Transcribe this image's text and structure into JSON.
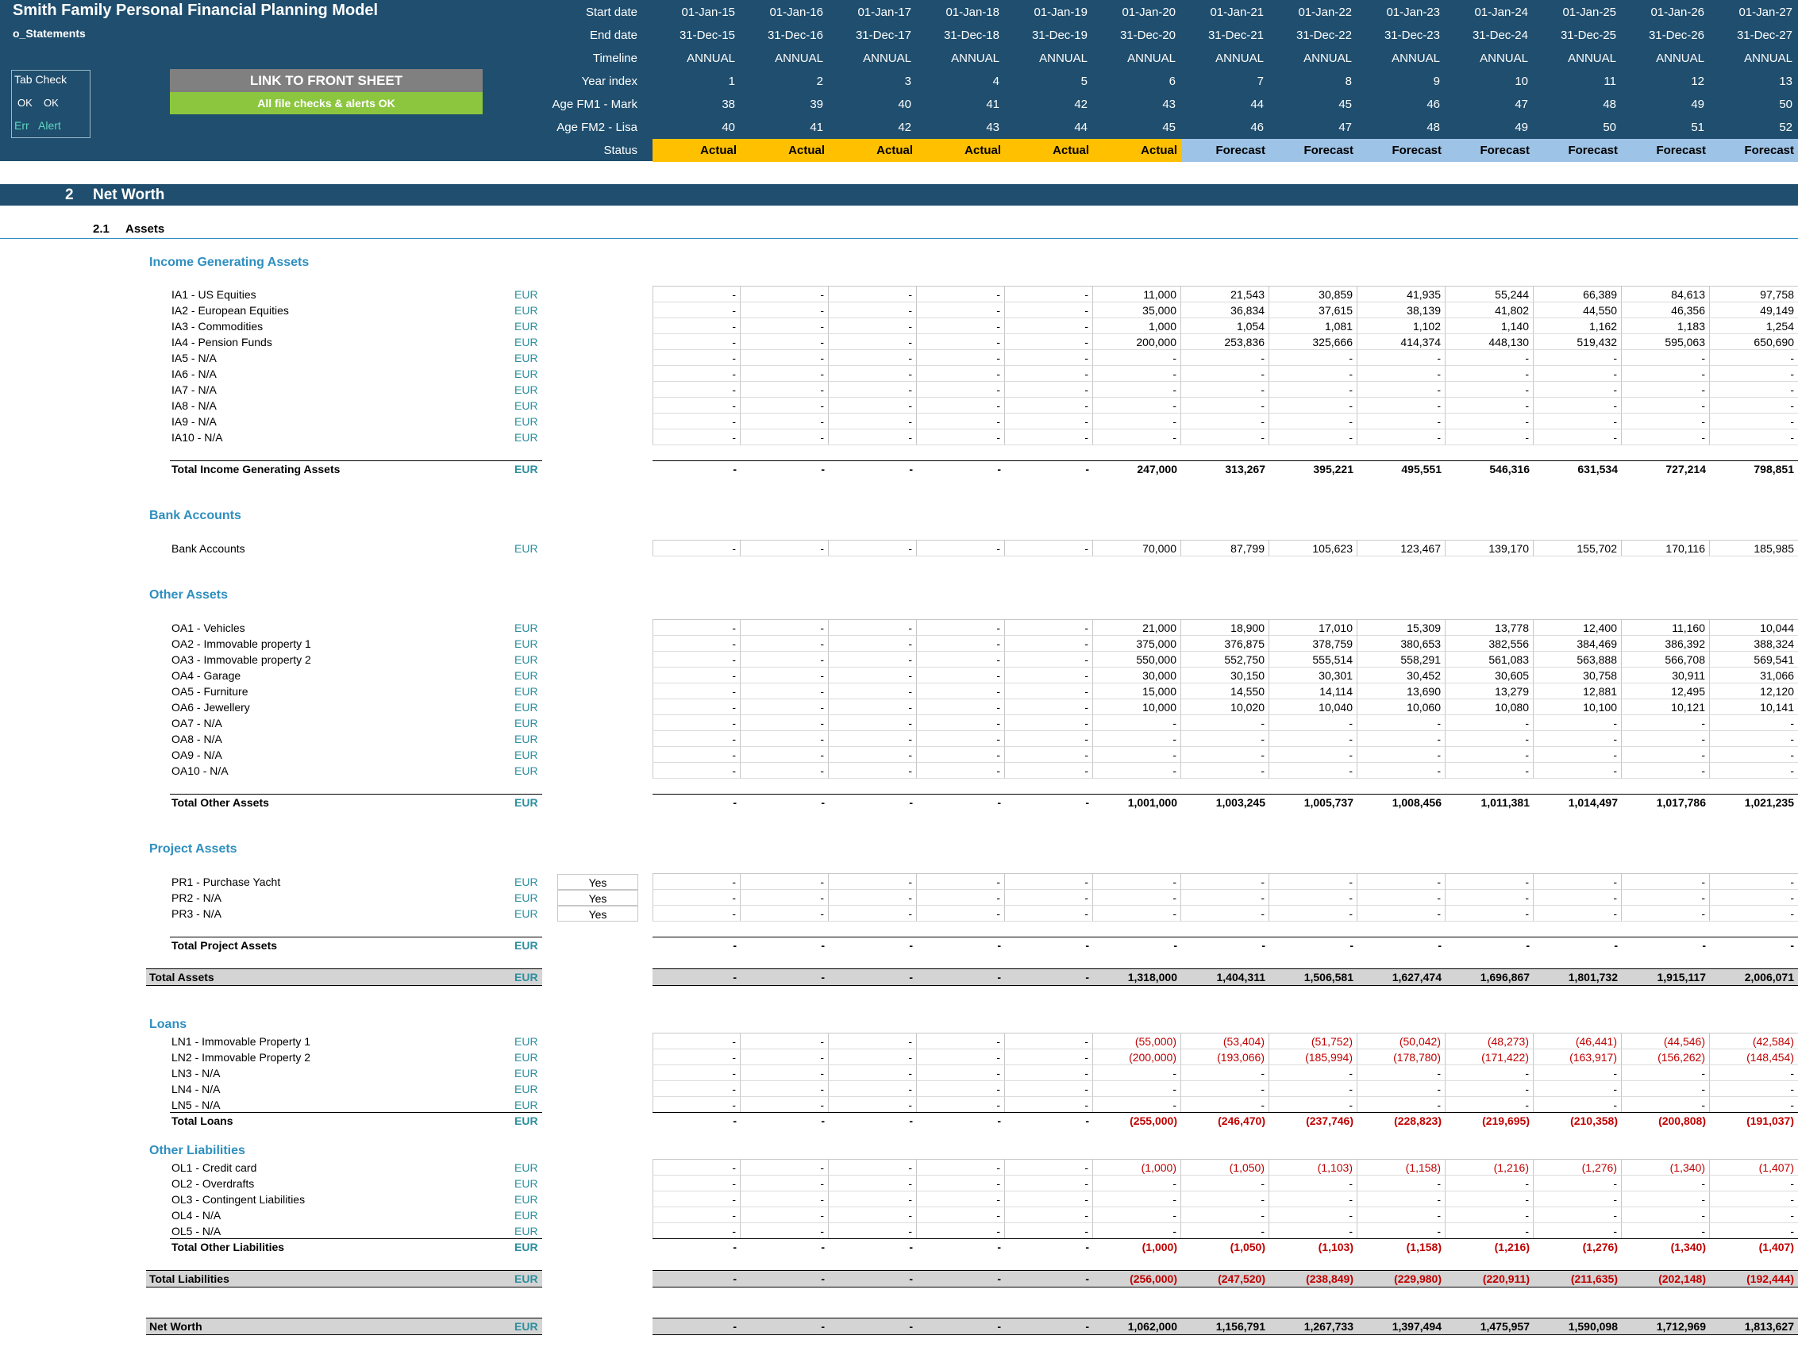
{
  "header": {
    "title": "Smith Family Personal Financial Planning Model",
    "sheet": "o_Statements",
    "tab_check": {
      "title": "Tab Check",
      "ok1": "OK",
      "ok2": "OK",
      "err": "Err",
      "alert": "Alert"
    },
    "link_button": "LINK TO FRONT SHEET",
    "checks_banner": "All file checks & alerts OK",
    "row_labels": [
      "Start date",
      "End date",
      "Timeline",
      "Year index",
      "Age FM1 - Mark",
      "Age FM2 - Lisa",
      "Status"
    ],
    "start_dates": [
      "01-Jan-15",
      "01-Jan-16",
      "01-Jan-17",
      "01-Jan-18",
      "01-Jan-19",
      "01-Jan-20",
      "01-Jan-21",
      "01-Jan-22",
      "01-Jan-23",
      "01-Jan-24",
      "01-Jan-25",
      "01-Jan-26",
      "01-Jan-27"
    ],
    "end_dates": [
      "31-Dec-15",
      "31-Dec-16",
      "31-Dec-17",
      "31-Dec-18",
      "31-Dec-19",
      "31-Dec-20",
      "31-Dec-21",
      "31-Dec-22",
      "31-Dec-23",
      "31-Dec-24",
      "31-Dec-25",
      "31-Dec-26",
      "31-Dec-27"
    ],
    "timeline": [
      "ANNUAL",
      "ANNUAL",
      "ANNUAL",
      "ANNUAL",
      "ANNUAL",
      "ANNUAL",
      "ANNUAL",
      "ANNUAL",
      "ANNUAL",
      "ANNUAL",
      "ANNUAL",
      "ANNUAL",
      "ANNUAL"
    ],
    "year_index": [
      "1",
      "2",
      "3",
      "4",
      "5",
      "6",
      "7",
      "8",
      "9",
      "10",
      "11",
      "12",
      "13"
    ],
    "age_fm1": [
      "38",
      "39",
      "40",
      "41",
      "42",
      "43",
      "44",
      "45",
      "46",
      "47",
      "48",
      "49",
      "50"
    ],
    "age_fm2": [
      "40",
      "41",
      "42",
      "43",
      "44",
      "45",
      "46",
      "47",
      "48",
      "49",
      "50",
      "51",
      "52"
    ],
    "status": [
      "Actual",
      "Actual",
      "Actual",
      "Actual",
      "Actual",
      "Actual",
      "Forecast",
      "Forecast",
      "Forecast",
      "Forecast",
      "Forecast",
      "Forecast",
      "Forecast"
    ]
  },
  "colors": {
    "navy": "#1f4e6e",
    "actual": "#ffc000",
    "forecast": "#9dc3e6",
    "green": "#8cc63f",
    "grey_button": "#808080",
    "teal": "#2e8f9e",
    "section_blue": "#2e8fbf",
    "negative": "#c00000"
  },
  "section": {
    "number": "2",
    "title": "Net Worth",
    "sub_number": "2.1",
    "sub_title": "Assets"
  },
  "currency": "EUR",
  "income_assets": {
    "heading": "Income Generating Assets",
    "rows": [
      {
        "label": "IA1 - US Equities",
        "values": [
          "-",
          "-",
          "-",
          "-",
          "-",
          "11,000",
          "21,543",
          "30,859",
          "41,935",
          "55,244",
          "66,389",
          "84,613",
          "97,758"
        ]
      },
      {
        "label": "IA2 - European Equities",
        "values": [
          "-",
          "-",
          "-",
          "-",
          "-",
          "35,000",
          "36,834",
          "37,615",
          "38,139",
          "41,802",
          "44,550",
          "46,356",
          "49,149"
        ]
      },
      {
        "label": "IA3 - Commodities",
        "values": [
          "-",
          "-",
          "-",
          "-",
          "-",
          "1,000",
          "1,054",
          "1,081",
          "1,102",
          "1,140",
          "1,162",
          "1,183",
          "1,254"
        ]
      },
      {
        "label": "IA4 - Pension Funds",
        "values": [
          "-",
          "-",
          "-",
          "-",
          "-",
          "200,000",
          "253,836",
          "325,666",
          "414,374",
          "448,130",
          "519,432",
          "595,063",
          "650,690"
        ]
      },
      {
        "label": "IA5 - N/A",
        "values": [
          "-",
          "-",
          "-",
          "-",
          "-",
          "-",
          "-",
          "-",
          "-",
          "-",
          "-",
          "-",
          "-"
        ]
      },
      {
        "label": "IA6 - N/A",
        "values": [
          "-",
          "-",
          "-",
          "-",
          "-",
          "-",
          "-",
          "-",
          "-",
          "-",
          "-",
          "-",
          "-"
        ]
      },
      {
        "label": "IA7 - N/A",
        "values": [
          "-",
          "-",
          "-",
          "-",
          "-",
          "-",
          "-",
          "-",
          "-",
          "-",
          "-",
          "-",
          "-"
        ]
      },
      {
        "label": "IA8 - N/A",
        "values": [
          "-",
          "-",
          "-",
          "-",
          "-",
          "-",
          "-",
          "-",
          "-",
          "-",
          "-",
          "-",
          "-"
        ]
      },
      {
        "label": "IA9 - N/A",
        "values": [
          "-",
          "-",
          "-",
          "-",
          "-",
          "-",
          "-",
          "-",
          "-",
          "-",
          "-",
          "-",
          "-"
        ]
      },
      {
        "label": "IA10 - N/A",
        "values": [
          "-",
          "-",
          "-",
          "-",
          "-",
          "-",
          "-",
          "-",
          "-",
          "-",
          "-",
          "-",
          "-"
        ]
      }
    ],
    "total": {
      "label": "Total Income Generating Assets",
      "values": [
        "-",
        "-",
        "-",
        "-",
        "-",
        "247,000",
        "313,267",
        "395,221",
        "495,551",
        "546,316",
        "631,534",
        "727,214",
        "798,851"
      ]
    }
  },
  "bank": {
    "heading": "Bank Accounts",
    "rows": [
      {
        "label": "Bank Accounts",
        "values": [
          "-",
          "-",
          "-",
          "-",
          "-",
          "70,000",
          "87,799",
          "105,623",
          "123,467",
          "139,170",
          "155,702",
          "170,116",
          "185,985"
        ]
      }
    ]
  },
  "other_assets": {
    "heading": "Other Assets",
    "rows": [
      {
        "label": "OA1 - Vehicles",
        "values": [
          "-",
          "-",
          "-",
          "-",
          "-",
          "21,000",
          "18,900",
          "17,010",
          "15,309",
          "13,778",
          "12,400",
          "11,160",
          "10,044"
        ]
      },
      {
        "label": "OA2 - Immovable property 1",
        "values": [
          "-",
          "-",
          "-",
          "-",
          "-",
          "375,000",
          "376,875",
          "378,759",
          "380,653",
          "382,556",
          "384,469",
          "386,392",
          "388,324"
        ]
      },
      {
        "label": "OA3 - Immovable property 2",
        "values": [
          "-",
          "-",
          "-",
          "-",
          "-",
          "550,000",
          "552,750",
          "555,514",
          "558,291",
          "561,083",
          "563,888",
          "566,708",
          "569,541"
        ]
      },
      {
        "label": "OA4 - Garage",
        "values": [
          "-",
          "-",
          "-",
          "-",
          "-",
          "30,000",
          "30,150",
          "30,301",
          "30,452",
          "30,605",
          "30,758",
          "30,911",
          "31,066"
        ]
      },
      {
        "label": "OA5 - Furniture",
        "values": [
          "-",
          "-",
          "-",
          "-",
          "-",
          "15,000",
          "14,550",
          "14,114",
          "13,690",
          "13,279",
          "12,881",
          "12,495",
          "12,120"
        ]
      },
      {
        "label": "OA6 - Jewellery",
        "values": [
          "-",
          "-",
          "-",
          "-",
          "-",
          "10,000",
          "10,020",
          "10,040",
          "10,060",
          "10,080",
          "10,100",
          "10,121",
          "10,141"
        ]
      },
      {
        "label": "OA7 - N/A",
        "values": [
          "-",
          "-",
          "-",
          "-",
          "-",
          "-",
          "-",
          "-",
          "-",
          "-",
          "-",
          "-",
          "-"
        ]
      },
      {
        "label": "OA8 - N/A",
        "values": [
          "-",
          "-",
          "-",
          "-",
          "-",
          "-",
          "-",
          "-",
          "-",
          "-",
          "-",
          "-",
          "-"
        ]
      },
      {
        "label": "OA9 - N/A",
        "values": [
          "-",
          "-",
          "-",
          "-",
          "-",
          "-",
          "-",
          "-",
          "-",
          "-",
          "-",
          "-",
          "-"
        ]
      },
      {
        "label": "OA10 - N/A",
        "values": [
          "-",
          "-",
          "-",
          "-",
          "-",
          "-",
          "-",
          "-",
          "-",
          "-",
          "-",
          "-",
          "-"
        ]
      }
    ],
    "total": {
      "label": "Total Other Assets",
      "values": [
        "-",
        "-",
        "-",
        "-",
        "-",
        "1,001,000",
        "1,003,245",
        "1,005,737",
        "1,008,456",
        "1,011,381",
        "1,014,497",
        "1,017,786",
        "1,021,235"
      ]
    }
  },
  "project_assets": {
    "heading": "Project Assets",
    "rows": [
      {
        "label": "PR1 - Purchase Yacht",
        "flag": "Yes",
        "values": [
          "-",
          "-",
          "-",
          "-",
          "-",
          "-",
          "-",
          "-",
          "-",
          "-",
          "-",
          "-",
          "-"
        ]
      },
      {
        "label": "PR2 - N/A",
        "flag": "Yes",
        "values": [
          "-",
          "-",
          "-",
          "-",
          "-",
          "-",
          "-",
          "-",
          "-",
          "-",
          "-",
          "-",
          "-"
        ]
      },
      {
        "label": "PR3 - N/A",
        "flag": "Yes",
        "values": [
          "-",
          "-",
          "-",
          "-",
          "-",
          "-",
          "-",
          "-",
          "-",
          "-",
          "-",
          "-",
          "-"
        ]
      }
    ],
    "total": {
      "label": "Total Project Assets",
      "values": [
        "-",
        "-",
        "-",
        "-",
        "-",
        "-",
        "-",
        "-",
        "-",
        "-",
        "-",
        "-",
        "-"
      ]
    }
  },
  "total_assets": {
    "label": "Total Assets",
    "values": [
      "-",
      "-",
      "-",
      "-",
      "-",
      "1,318,000",
      "1,404,311",
      "1,506,581",
      "1,627,474",
      "1,696,867",
      "1,801,732",
      "1,915,117",
      "2,006,071"
    ]
  },
  "loans": {
    "heading": "Loans",
    "rows": [
      {
        "label": "LN1 - Immovable Property 1",
        "values": [
          "-",
          "-",
          "-",
          "-",
          "-",
          "(55,000)",
          "(53,404)",
          "(51,752)",
          "(50,042)",
          "(48,273)",
          "(46,441)",
          "(44,546)",
          "(42,584)"
        ]
      },
      {
        "label": "LN2 - Immovable Property 2",
        "values": [
          "-",
          "-",
          "-",
          "-",
          "-",
          "(200,000)",
          "(193,066)",
          "(185,994)",
          "(178,780)",
          "(171,422)",
          "(163,917)",
          "(156,262)",
          "(148,454)"
        ]
      },
      {
        "label": "LN3 - N/A",
        "values": [
          "-",
          "-",
          "-",
          "-",
          "-",
          "-",
          "-",
          "-",
          "-",
          "-",
          "-",
          "-",
          "-"
        ]
      },
      {
        "label": "LN4 - N/A",
        "values": [
          "-",
          "-",
          "-",
          "-",
          "-",
          "-",
          "-",
          "-",
          "-",
          "-",
          "-",
          "-",
          "-"
        ]
      },
      {
        "label": "LN5 - N/A",
        "values": [
          "-",
          "-",
          "-",
          "-",
          "-",
          "-",
          "-",
          "-",
          "-",
          "-",
          "-",
          "-",
          "-"
        ]
      }
    ],
    "total": {
      "label": "Total Loans",
      "values": [
        "-",
        "-",
        "-",
        "-",
        "-",
        "(255,000)",
        "(246,470)",
        "(237,746)",
        "(228,823)",
        "(219,695)",
        "(210,358)",
        "(200,808)",
        "(191,037)"
      ]
    }
  },
  "other_liabilities": {
    "heading": "Other Liabilities",
    "rows": [
      {
        "label": "OL1 - Credit card",
        "values": [
          "-",
          "-",
          "-",
          "-",
          "-",
          "(1,000)",
          "(1,050)",
          "(1,103)",
          "(1,158)",
          "(1,216)",
          "(1,276)",
          "(1,340)",
          "(1,407)"
        ]
      },
      {
        "label": "OL2 - Overdrafts",
        "values": [
          "-",
          "-",
          "-",
          "-",
          "-",
          "-",
          "-",
          "-",
          "-",
          "-",
          "-",
          "-",
          "-"
        ]
      },
      {
        "label": "OL3 - Contingent Liabilities",
        "values": [
          "-",
          "-",
          "-",
          "-",
          "-",
          "-",
          "-",
          "-",
          "-",
          "-",
          "-",
          "-",
          "-"
        ]
      },
      {
        "label": "OL4 - N/A",
        "values": [
          "-",
          "-",
          "-",
          "-",
          "-",
          "-",
          "-",
          "-",
          "-",
          "-",
          "-",
          "-",
          "-"
        ]
      },
      {
        "label": "OL5 - N/A",
        "values": [
          "-",
          "-",
          "-",
          "-",
          "-",
          "-",
          "-",
          "-",
          "-",
          "-",
          "-",
          "-",
          "-"
        ]
      }
    ],
    "total": {
      "label": "Total Other Liabilities",
      "values": [
        "-",
        "-",
        "-",
        "-",
        "-",
        "(1,000)",
        "(1,050)",
        "(1,103)",
        "(1,158)",
        "(1,216)",
        "(1,276)",
        "(1,340)",
        "(1,407)"
      ]
    }
  },
  "total_liabilities": {
    "label": "Total Liabilities",
    "values": [
      "-",
      "-",
      "-",
      "-",
      "-",
      "(256,000)",
      "(247,520)",
      "(238,849)",
      "(229,980)",
      "(220,911)",
      "(211,635)",
      "(202,148)",
      "(192,444)"
    ]
  },
  "net_worth": {
    "label": "Net Worth",
    "values": [
      "-",
      "-",
      "-",
      "-",
      "-",
      "1,062,000",
      "1,156,791",
      "1,267,733",
      "1,397,494",
      "1,475,957",
      "1,590,098",
      "1,712,969",
      "1,813,627"
    ]
  }
}
